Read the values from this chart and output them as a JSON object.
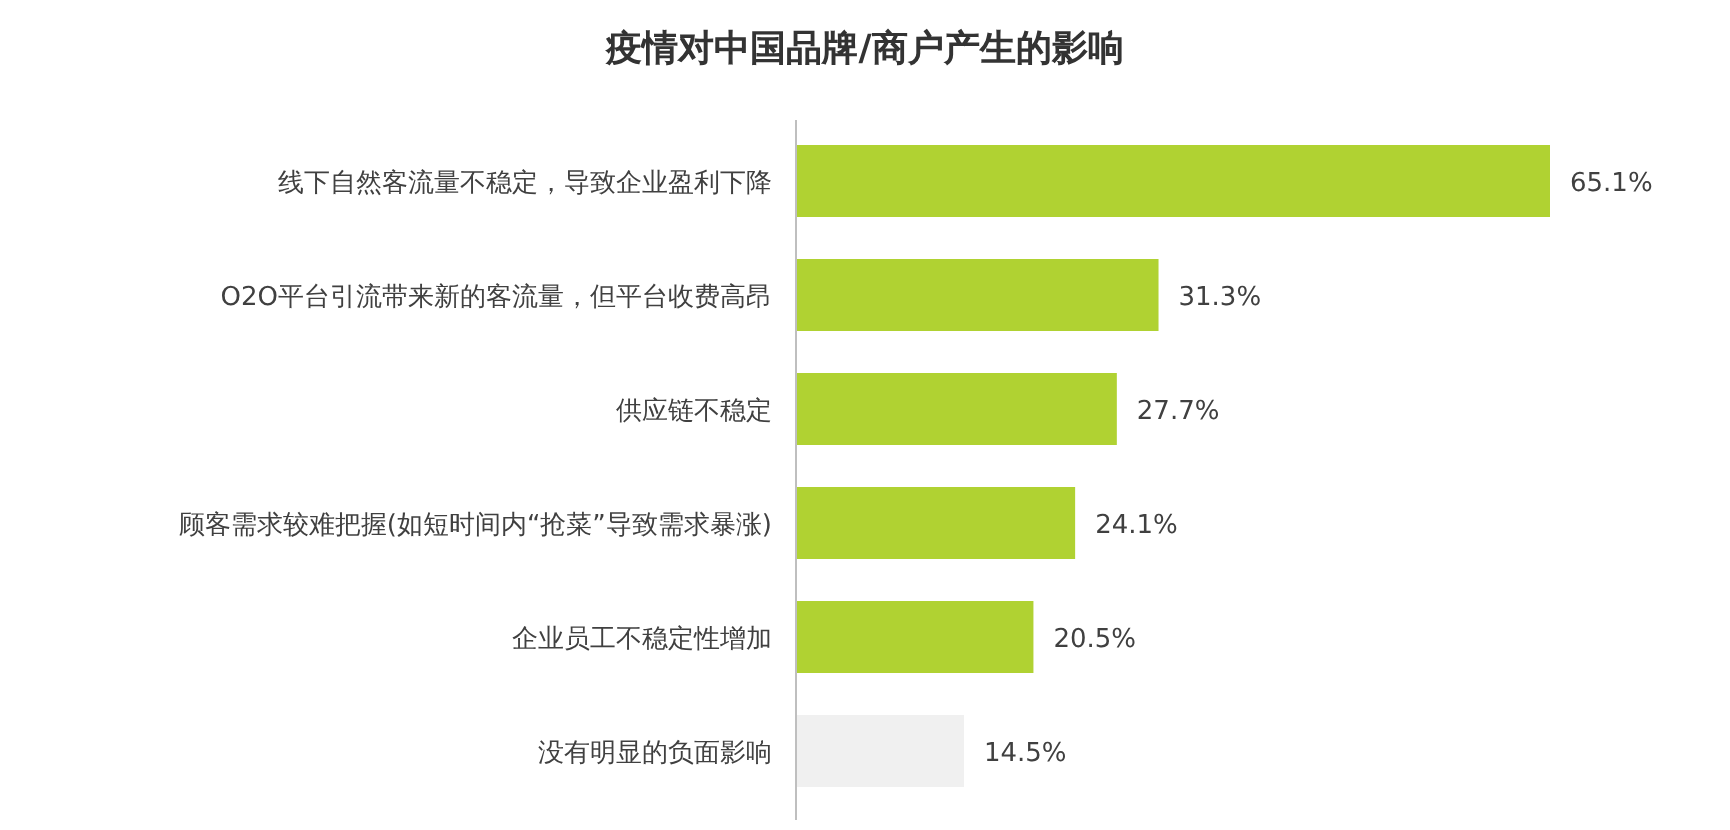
{
  "chart_data": {
    "type": "bar",
    "orientation": "horizontal",
    "title": "疫情对中国品牌/商户产生的影响",
    "categories": [
      "线下自然客流量不稳定，导致企业盈利下降",
      "O2O平台引流带来新的客流量，但平台收费高昂",
      "供应链不稳定",
      "顾客需求较难把握(如短时间内“抢菜”导致需求暴涨)",
      "企业员工不稳定性增加",
      "没有明显的负面影响"
    ],
    "values": [
      65.1,
      31.3,
      27.7,
      24.1,
      20.5,
      14.5
    ],
    "colors": [
      "#b0d232",
      "#b0d232",
      "#b0d232",
      "#b0d232",
      "#b0d232",
      "#f0f0f0"
    ],
    "value_labels": [
      "65.1%",
      "31.3%",
      "27.7%",
      "24.1%",
      "20.5%",
      "14.5%"
    ]
  }
}
